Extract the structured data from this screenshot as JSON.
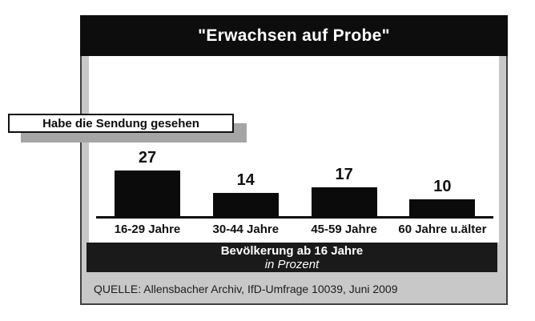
{
  "title": "\"Erwachsen auf Probe\"",
  "callout_label": "Habe die Sendung gesehen",
  "chart_data": {
    "type": "bar",
    "title": "\"Erwachsen auf Probe\"",
    "subtitle": "Habe die Sendung gesehen",
    "categories": [
      "16-29 Jahre",
      "30-44 Jahre",
      "45-59 Jahre",
      "60 Jahre u.älter"
    ],
    "values": [
      27,
      14,
      17,
      10
    ],
    "xlabel": "",
    "ylabel": "in Prozent",
    "ylim": [
      0,
      30
    ],
    "grid": false,
    "legend": "none",
    "value_labels_shown": true
  },
  "footer_strip": {
    "line1": "Bevölkerung ab 16 Jahre",
    "line2": "in Prozent"
  },
  "source": "QUELLE: Allensbacher Archiv, IfD-Umfrage 10039, Juni 2009",
  "colors": {
    "title_bar_bg": "#0d0d0d",
    "bar": "#0b0b0b",
    "panel_bg": "#c8c8c8",
    "panel_border": "#3f3f3f",
    "strip_bg": "#1a1a1a",
    "callout_shadow": "#a5a5a5",
    "text_on_dark": "#ffffff",
    "text": "#111111"
  }
}
